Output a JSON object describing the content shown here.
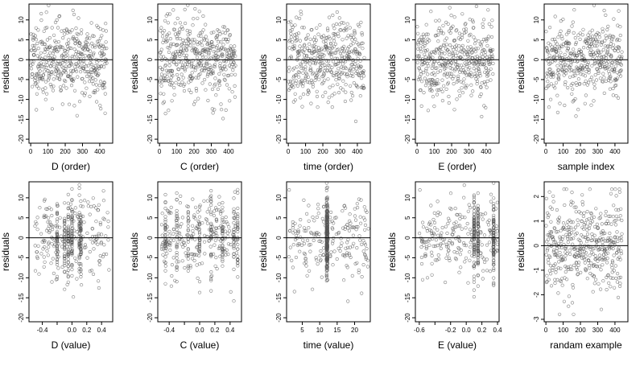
{
  "figure": {
    "ylabel": "residuals"
  },
  "chart_data": [
    {
      "type": "scatter",
      "xlabel": "D (order)",
      "ylabel": "residuals",
      "xlim": [
        -10,
        475
      ],
      "ylim": [
        -21,
        14
      ],
      "xticks": [
        0,
        100,
        200,
        300,
        400
      ],
      "xtick_labels": [
        "0",
        "100",
        "200",
        "300",
        "400"
      ],
      "yticks": [
        -20,
        -15,
        -10,
        -5,
        0,
        5,
        10
      ],
      "ytick_labels": [
        "-20",
        "-15",
        "-10",
        "-5",
        "0",
        "5",
        "10"
      ],
      "reference_line": 0,
      "gen": {
        "kind": "index",
        "n": 440,
        "sd": 5,
        "seed": 11
      }
    },
    {
      "type": "scatter",
      "xlabel": "C (order)",
      "ylabel": "residuals",
      "xlim": [
        -10,
        475
      ],
      "ylim": [
        -21,
        14
      ],
      "xticks": [
        0,
        100,
        200,
        300,
        400
      ],
      "xtick_labels": [
        "0",
        "100",
        "200",
        "300",
        "400"
      ],
      "yticks": [
        -20,
        -15,
        -10,
        -5,
        0,
        5,
        10
      ],
      "ytick_labels": [
        "-20",
        "-15",
        "-10",
        "-5",
        "0",
        "5",
        "10"
      ],
      "reference_line": 0,
      "gen": {
        "kind": "index",
        "n": 440,
        "sd": 5,
        "seed": 23
      }
    },
    {
      "type": "scatter",
      "xlabel": "time (order)",
      "ylabel": "residuals",
      "xlim": [
        -10,
        475
      ],
      "ylim": [
        -21,
        14
      ],
      "xticks": [
        0,
        100,
        200,
        300,
        400
      ],
      "xtick_labels": [
        "0",
        "100",
        "200",
        "300",
        "400"
      ],
      "yticks": [
        -20,
        -15,
        -10,
        -5,
        0,
        5,
        10
      ],
      "ytick_labels": [
        "-20",
        "-15",
        "-10",
        "-5",
        "0",
        "5",
        "10"
      ],
      "reference_line": 0,
      "gen": {
        "kind": "index",
        "n": 440,
        "sd": 5,
        "seed": 37
      }
    },
    {
      "type": "scatter",
      "xlabel": "E (order)",
      "ylabel": "residuals",
      "xlim": [
        -10,
        475
      ],
      "ylim": [
        -21,
        14
      ],
      "xticks": [
        0,
        100,
        200,
        300,
        400
      ],
      "xtick_labels": [
        "0",
        "100",
        "200",
        "300",
        "400"
      ],
      "yticks": [
        -20,
        -15,
        -10,
        -5,
        0,
        5,
        10
      ],
      "ytick_labels": [
        "-20",
        "-15",
        "-10",
        "-5",
        "0",
        "5",
        "10"
      ],
      "reference_line": 0,
      "gen": {
        "kind": "index",
        "n": 440,
        "sd": 5,
        "seed": 41
      }
    },
    {
      "type": "scatter",
      "xlabel": "sample index",
      "ylabel": "residuals",
      "xlim": [
        -10,
        475
      ],
      "ylim": [
        -21,
        14
      ],
      "xticks": [
        0,
        100,
        200,
        300,
        400
      ],
      "xtick_labels": [
        "0",
        "100",
        "200",
        "300",
        "400"
      ],
      "yticks": [
        -20,
        -15,
        -10,
        -5,
        0,
        5,
        10
      ],
      "ytick_labels": [
        "-20",
        "-15",
        "-10",
        "-5",
        "0",
        "5",
        "10"
      ],
      "reference_line": 0,
      "gen": {
        "kind": "index",
        "n": 440,
        "sd": 5,
        "seed": 53
      }
    },
    {
      "type": "scatter",
      "xlabel": "D (value)",
      "ylabel": "residuals",
      "xlim": [
        -0.58,
        0.55
      ],
      "ylim": [
        -21,
        14
      ],
      "xticks": [
        -0.4,
        -0.2,
        0,
        0.2,
        0.4
      ],
      "xtick_labels": [
        "-0.4",
        "",
        "0.0",
        "0.2",
        "0.4"
      ],
      "yticks": [
        -20,
        -15,
        -10,
        -5,
        0,
        5,
        10
      ],
      "ytick_labels": [
        "-20",
        "-15",
        "-10",
        "-5",
        "0",
        "5",
        "10"
      ],
      "reference_line": 0,
      "gen": {
        "kind": "value",
        "n": 440,
        "sd": 5,
        "seed": 61,
        "xrange": [
          -0.5,
          0.5
        ],
        "stacks": [
          -0.2,
          -0.1,
          -0.05,
          0.0,
          0.1,
          0.12
        ]
      }
    },
    {
      "type": "scatter",
      "xlabel": "C (value)",
      "ylabel": "residuals",
      "xlim": [
        -0.55,
        0.55
      ],
      "ylim": [
        -21,
        14
      ],
      "xticks": [
        -0.4,
        -0.2,
        0,
        0.2,
        0.4
      ],
      "xtick_labels": [
        "-0.4",
        "",
        "0.0",
        "0.2",
        "0.4"
      ],
      "yticks": [
        -20,
        -15,
        -10,
        -5,
        0,
        5,
        10
      ],
      "ytick_labels": [
        "-20",
        "-15",
        "-10",
        "-5",
        "0",
        "5",
        "10"
      ],
      "reference_line": 0,
      "gen": {
        "kind": "value",
        "n": 440,
        "sd": 5,
        "seed": 71,
        "xrange": [
          -0.5,
          0.5
        ],
        "stacks": [
          -0.45,
          -0.3,
          -0.15,
          0.0,
          0.15,
          0.3,
          0.45,
          0.5
        ]
      }
    },
    {
      "type": "scatter",
      "xlabel": "time (value)",
      "ylabel": "residuals",
      "xlim": [
        0.5,
        24.5
      ],
      "ylim": [
        -21,
        14
      ],
      "xticks": [
        5,
        10,
        15,
        20
      ],
      "xtick_labels": [
        "5",
        "10",
        "15",
        "20"
      ],
      "yticks": [
        -20,
        -15,
        -10,
        -5,
        0,
        5,
        10
      ],
      "ytick_labels": [
        "-20",
        "-15",
        "-10",
        "-5",
        "0",
        "5",
        "10"
      ],
      "reference_line": 0,
      "gen": {
        "kind": "value",
        "n": 440,
        "sd": 5,
        "seed": 83,
        "xrange": [
          1,
          24
        ],
        "stacks": [
          12,
          12.2
        ]
      }
    },
    {
      "type": "scatter",
      "xlabel": "E (value)",
      "ylabel": "residuals",
      "xlim": [
        -0.65,
        0.42
      ],
      "ylim": [
        -21,
        14
      ],
      "xticks": [
        -0.6,
        -0.4,
        -0.2,
        0,
        0.2,
        0.4
      ],
      "xtick_labels": [
        "-0.6",
        "",
        "-0.2",
        "0.0",
        "0.2",
        "0.4"
      ],
      "yticks": [
        -20,
        -15,
        -10,
        -5,
        0,
        5,
        10
      ],
      "ytick_labels": [
        "-20",
        "-15",
        "-10",
        "-5",
        "0",
        "5",
        "10"
      ],
      "reference_line": 0,
      "gen": {
        "kind": "value",
        "n": 440,
        "sd": 5,
        "seed": 97,
        "xrange": [
          -0.6,
          0.4
        ],
        "stacks": [
          0.1,
          0.15,
          0.35
        ]
      }
    },
    {
      "type": "scatter",
      "xlabel": "randam example",
      "ylabel": "residuals",
      "xlim": [
        -10,
        475
      ],
      "ylim": [
        -3.1,
        2.6
      ],
      "xticks": [
        0,
        100,
        200,
        300,
        400
      ],
      "xtick_labels": [
        "0",
        "100",
        "200",
        "300",
        "400"
      ],
      "yticks": [
        -3,
        -2,
        -1,
        0,
        1,
        2
      ],
      "ytick_labels": [
        "-3",
        "-2",
        "-1",
        "0",
        "1",
        "2"
      ],
      "reference_line": 0,
      "gen": {
        "kind": "index",
        "n": 440,
        "sd": 1,
        "seed": 109
      }
    }
  ]
}
